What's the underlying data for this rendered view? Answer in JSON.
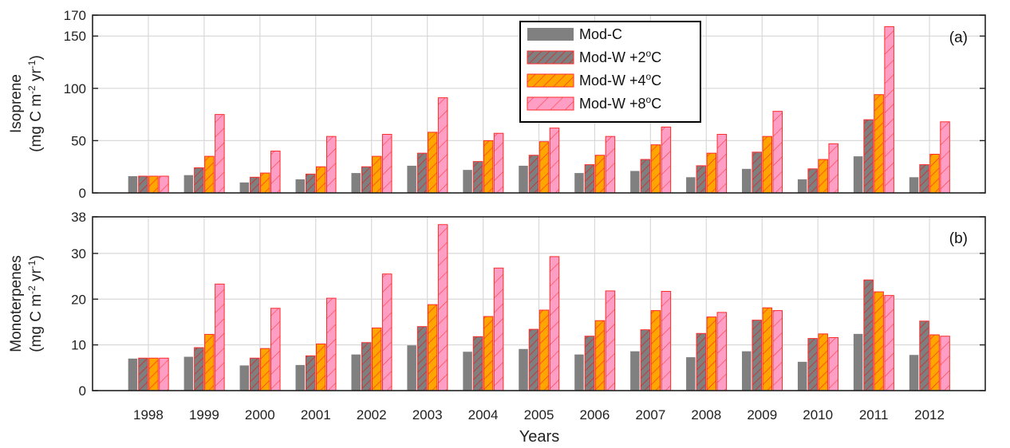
{
  "chart_data": [
    {
      "type": "bar",
      "panel_label": "(a)",
      "ylabel_line1": "Isoprene",
      "ylabel_line2": "(mg C m^-2 yr^-1)",
      "ylim": [
        0,
        170
      ],
      "yticks": [
        0,
        50,
        100,
        150,
        170
      ],
      "grid": true,
      "categories": [
        "1998",
        "1999",
        "2000",
        "2001",
        "2002",
        "2003",
        "2004",
        "2005",
        "2006",
        "2007",
        "2008",
        "2009",
        "2010",
        "2011",
        "2012"
      ],
      "series": [
        {
          "name": "Mod-C",
          "values": [
            16,
            17,
            10,
            13,
            19,
            26,
            22,
            26,
            19,
            21,
            15,
            23,
            13,
            35,
            15
          ]
        },
        {
          "name": "Mod-W +2oC",
          "values": [
            16,
            24,
            15,
            18,
            25,
            38,
            30,
            36,
            27,
            32,
            26,
            39,
            23,
            70,
            27
          ]
        },
        {
          "name": "Mod-W +4oC",
          "values": [
            16,
            35,
            19,
            25,
            35,
            58,
            50,
            49,
            36,
            46,
            38,
            54,
            32,
            94,
            37
          ]
        },
        {
          "name": "Mod-W +8oC",
          "values": [
            16,
            75,
            40,
            54,
            56,
            91,
            57,
            62,
            54,
            63,
            56,
            78,
            47,
            159,
            68
          ]
        }
      ]
    },
    {
      "type": "bar",
      "panel_label": "(b)",
      "ylabel_line1": "Monoterpenes",
      "ylabel_line2": "(mg C m^-2 yr^-1)",
      "xlabel": "Years",
      "ylim": [
        0,
        38
      ],
      "yticks": [
        0,
        10,
        20,
        30,
        38
      ],
      "grid": true,
      "categories": [
        "1998",
        "1999",
        "2000",
        "2001",
        "2002",
        "2003",
        "2004",
        "2005",
        "2006",
        "2007",
        "2008",
        "2009",
        "2010",
        "2011",
        "2012"
      ],
      "series": [
        {
          "name": "Mod-C",
          "values": [
            7.0,
            7.4,
            5.5,
            5.6,
            7.9,
            9.9,
            8.5,
            9.1,
            7.9,
            8.6,
            7.3,
            8.6,
            6.3,
            12.4,
            7.8
          ]
        },
        {
          "name": "Mod-W +2oC",
          "values": [
            7.1,
            9.4,
            7.1,
            7.6,
            10.5,
            14.0,
            11.8,
            13.4,
            11.9,
            13.3,
            12.5,
            15.4,
            11.4,
            24.2,
            15.2
          ]
        },
        {
          "name": "Mod-W +4oC",
          "values": [
            7.1,
            12.3,
            9.2,
            10.2,
            13.7,
            18.8,
            16.2,
            17.6,
            15.3,
            17.5,
            16.1,
            18.1,
            12.4,
            21.6,
            12.2
          ]
        },
        {
          "name": "Mod-W +8oC",
          "values": [
            7.1,
            23.3,
            18.0,
            20.2,
            25.5,
            36.3,
            26.8,
            29.3,
            21.8,
            21.7,
            17.1,
            17.5,
            11.6,
            20.8,
            11.9
          ]
        }
      ]
    }
  ],
  "legend": [
    {
      "label": "Mod-W +",
      "sup": "o",
      "suffix": "C",
      "key": "mod-c",
      "text": "Mod-C"
    },
    {
      "text": "Mod-W +2",
      "sup": "o",
      "suffix": "C"
    },
    {
      "text": "Mod-W +4",
      "sup": "o",
      "suffix": "C"
    },
    {
      "text": "Mod-W +8",
      "sup": "o",
      "suffix": "C"
    }
  ],
  "colors": {
    "mod_c": "#808080",
    "mod_w2_fill": "#7f7f7f",
    "mod_w4_fill": "#ffa500",
    "mod_w8_fill": "#ff9ec4",
    "hatch_edge": "#ff2a2a",
    "grid": "#d9d9d9",
    "axis": "#222222"
  }
}
